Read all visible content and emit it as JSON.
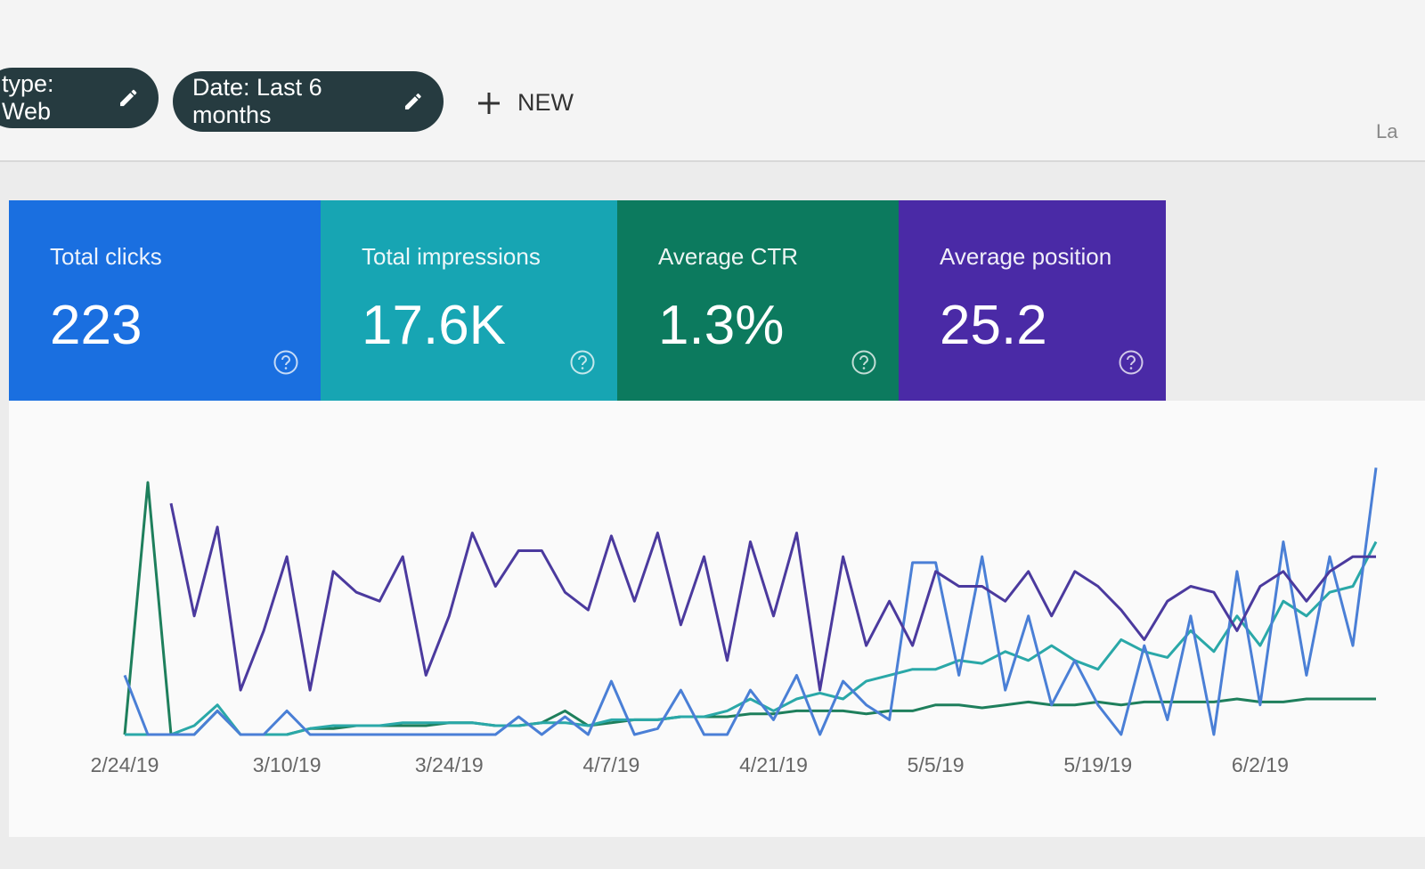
{
  "filters": [
    {
      "label": "type: Web"
    },
    {
      "label": "Date: Last 6 months"
    }
  ],
  "new_button": "NEW",
  "top_right": "La",
  "metrics": [
    {
      "label": "Total clicks",
      "value": "223",
      "color": "#1a6fe0"
    },
    {
      "label": "Total impressions",
      "value": "17.6K",
      "color": "#17a5b3"
    },
    {
      "label": "Average CTR",
      "value": "1.3%",
      "color": "#0c7a5e"
    },
    {
      "label": "Average position",
      "value": "25.2",
      "color": "#4a2aa6"
    }
  ],
  "chart_data": {
    "type": "line",
    "categories": [
      "2/24/19",
      null,
      null,
      null,
      null,
      null,
      null,
      "3/10/19",
      null,
      null,
      null,
      null,
      null,
      null,
      "3/24/19",
      null,
      null,
      null,
      null,
      null,
      null,
      "4/7/19",
      null,
      null,
      null,
      null,
      null,
      null,
      "4/21/19",
      null,
      null,
      null,
      null,
      null,
      null,
      "5/5/19",
      null,
      null,
      null,
      null,
      null,
      null,
      "5/19/19",
      null,
      null,
      null,
      null,
      null,
      null,
      "6/2/19",
      null,
      null,
      null,
      null,
      null
    ],
    "ylim": [
      0,
      100
    ],
    "series": [
      {
        "color": "#1e7f5c",
        "values": [
          0,
          85,
          0,
          0,
          8,
          0,
          0,
          0,
          2,
          2,
          3,
          3,
          3,
          3,
          4,
          4,
          3,
          3,
          4,
          8,
          3,
          4,
          5,
          5,
          6,
          6,
          6,
          7,
          7,
          8,
          8,
          8,
          7,
          8,
          8,
          10,
          10,
          9,
          10,
          11,
          10,
          10,
          11,
          10,
          11,
          11,
          11,
          11,
          12,
          11,
          11,
          12,
          12,
          12,
          12
        ]
      },
      {
        "color": "#2aa8a8",
        "values": [
          0,
          0,
          0,
          3,
          10,
          0,
          0,
          0,
          2,
          3,
          3,
          3,
          4,
          4,
          4,
          4,
          3,
          3,
          4,
          4,
          3,
          5,
          5,
          5,
          6,
          6,
          8,
          12,
          8,
          12,
          14,
          12,
          18,
          20,
          22,
          22,
          25,
          24,
          28,
          25,
          30,
          25,
          22,
          32,
          28,
          26,
          35,
          28,
          40,
          30,
          45,
          40,
          48,
          50,
          65
        ]
      },
      {
        "color": "#4a7fd6",
        "values": [
          20,
          0,
          0,
          0,
          8,
          0,
          0,
          8,
          0,
          0,
          0,
          0,
          0,
          0,
          0,
          0,
          0,
          6,
          0,
          6,
          0,
          18,
          0,
          2,
          15,
          0,
          0,
          15,
          5,
          20,
          0,
          18,
          10,
          5,
          58,
          58,
          20,
          60,
          15,
          40,
          10,
          25,
          10,
          0,
          30,
          5,
          40,
          0,
          55,
          10,
          65,
          20,
          60,
          30,
          90
        ]
      },
      {
        "color": "#4b3a9e",
        "values": [
          null,
          null,
          78,
          40,
          70,
          15,
          35,
          60,
          15,
          55,
          48,
          45,
          60,
          20,
          40,
          68,
          50,
          62,
          62,
          48,
          42,
          67,
          45,
          68,
          37,
          60,
          25,
          65,
          40,
          68,
          15,
          60,
          30,
          45,
          30,
          55,
          50,
          50,
          45,
          55,
          40,
          55,
          50,
          42,
          32,
          45,
          50,
          48,
          35,
          50,
          55,
          45,
          55,
          60,
          60
        ]
      }
    ]
  }
}
